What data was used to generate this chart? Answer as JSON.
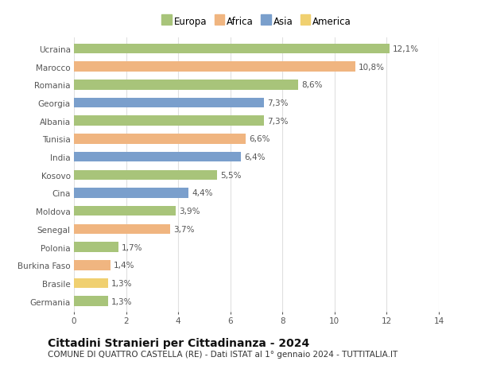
{
  "countries": [
    "Germania",
    "Brasile",
    "Burkina Faso",
    "Polonia",
    "Senegal",
    "Moldova",
    "Cina",
    "Kosovo",
    "India",
    "Tunisia",
    "Albania",
    "Georgia",
    "Romania",
    "Marocco",
    "Ucraina"
  ],
  "values": [
    1.3,
    1.3,
    1.4,
    1.7,
    3.7,
    3.9,
    4.4,
    5.5,
    6.4,
    6.6,
    7.3,
    7.3,
    8.6,
    10.8,
    12.1
  ],
  "labels": [
    "1,3%",
    "1,3%",
    "1,4%",
    "1,7%",
    "3,7%",
    "3,9%",
    "4,4%",
    "5,5%",
    "6,4%",
    "6,6%",
    "7,3%",
    "7,3%",
    "8,6%",
    "10,8%",
    "12,1%"
  ],
  "continents": [
    "Europa",
    "America",
    "Africa",
    "Europa",
    "Africa",
    "Europa",
    "Asia",
    "Europa",
    "Asia",
    "Africa",
    "Europa",
    "Asia",
    "Europa",
    "Africa",
    "Europa"
  ],
  "continent_colors": {
    "Europa": "#a8c47a",
    "Africa": "#f0b580",
    "Asia": "#7a9fcc",
    "America": "#f0d070"
  },
  "legend_order": [
    "Europa",
    "Africa",
    "Asia",
    "America"
  ],
  "title": "Cittadini Stranieri per Cittadinanza - 2024",
  "subtitle": "COMUNE DI QUATTRO CASTELLA (RE) - Dati ISTAT al 1° gennaio 2024 - TUTTITALIA.IT",
  "xlim": [
    0,
    14
  ],
  "xticks": [
    0,
    2,
    4,
    6,
    8,
    10,
    12,
    14
  ],
  "figure_bg": "#ffffff",
  "plot_bg": "#ffffff",
  "grid_color": "#e0e0e0",
  "title_fontsize": 10,
  "subtitle_fontsize": 7.5,
  "tick_fontsize": 7.5,
  "label_fontsize": 7.5,
  "legend_fontsize": 8.5,
  "label_color": "#555555",
  "bar_height": 0.55
}
